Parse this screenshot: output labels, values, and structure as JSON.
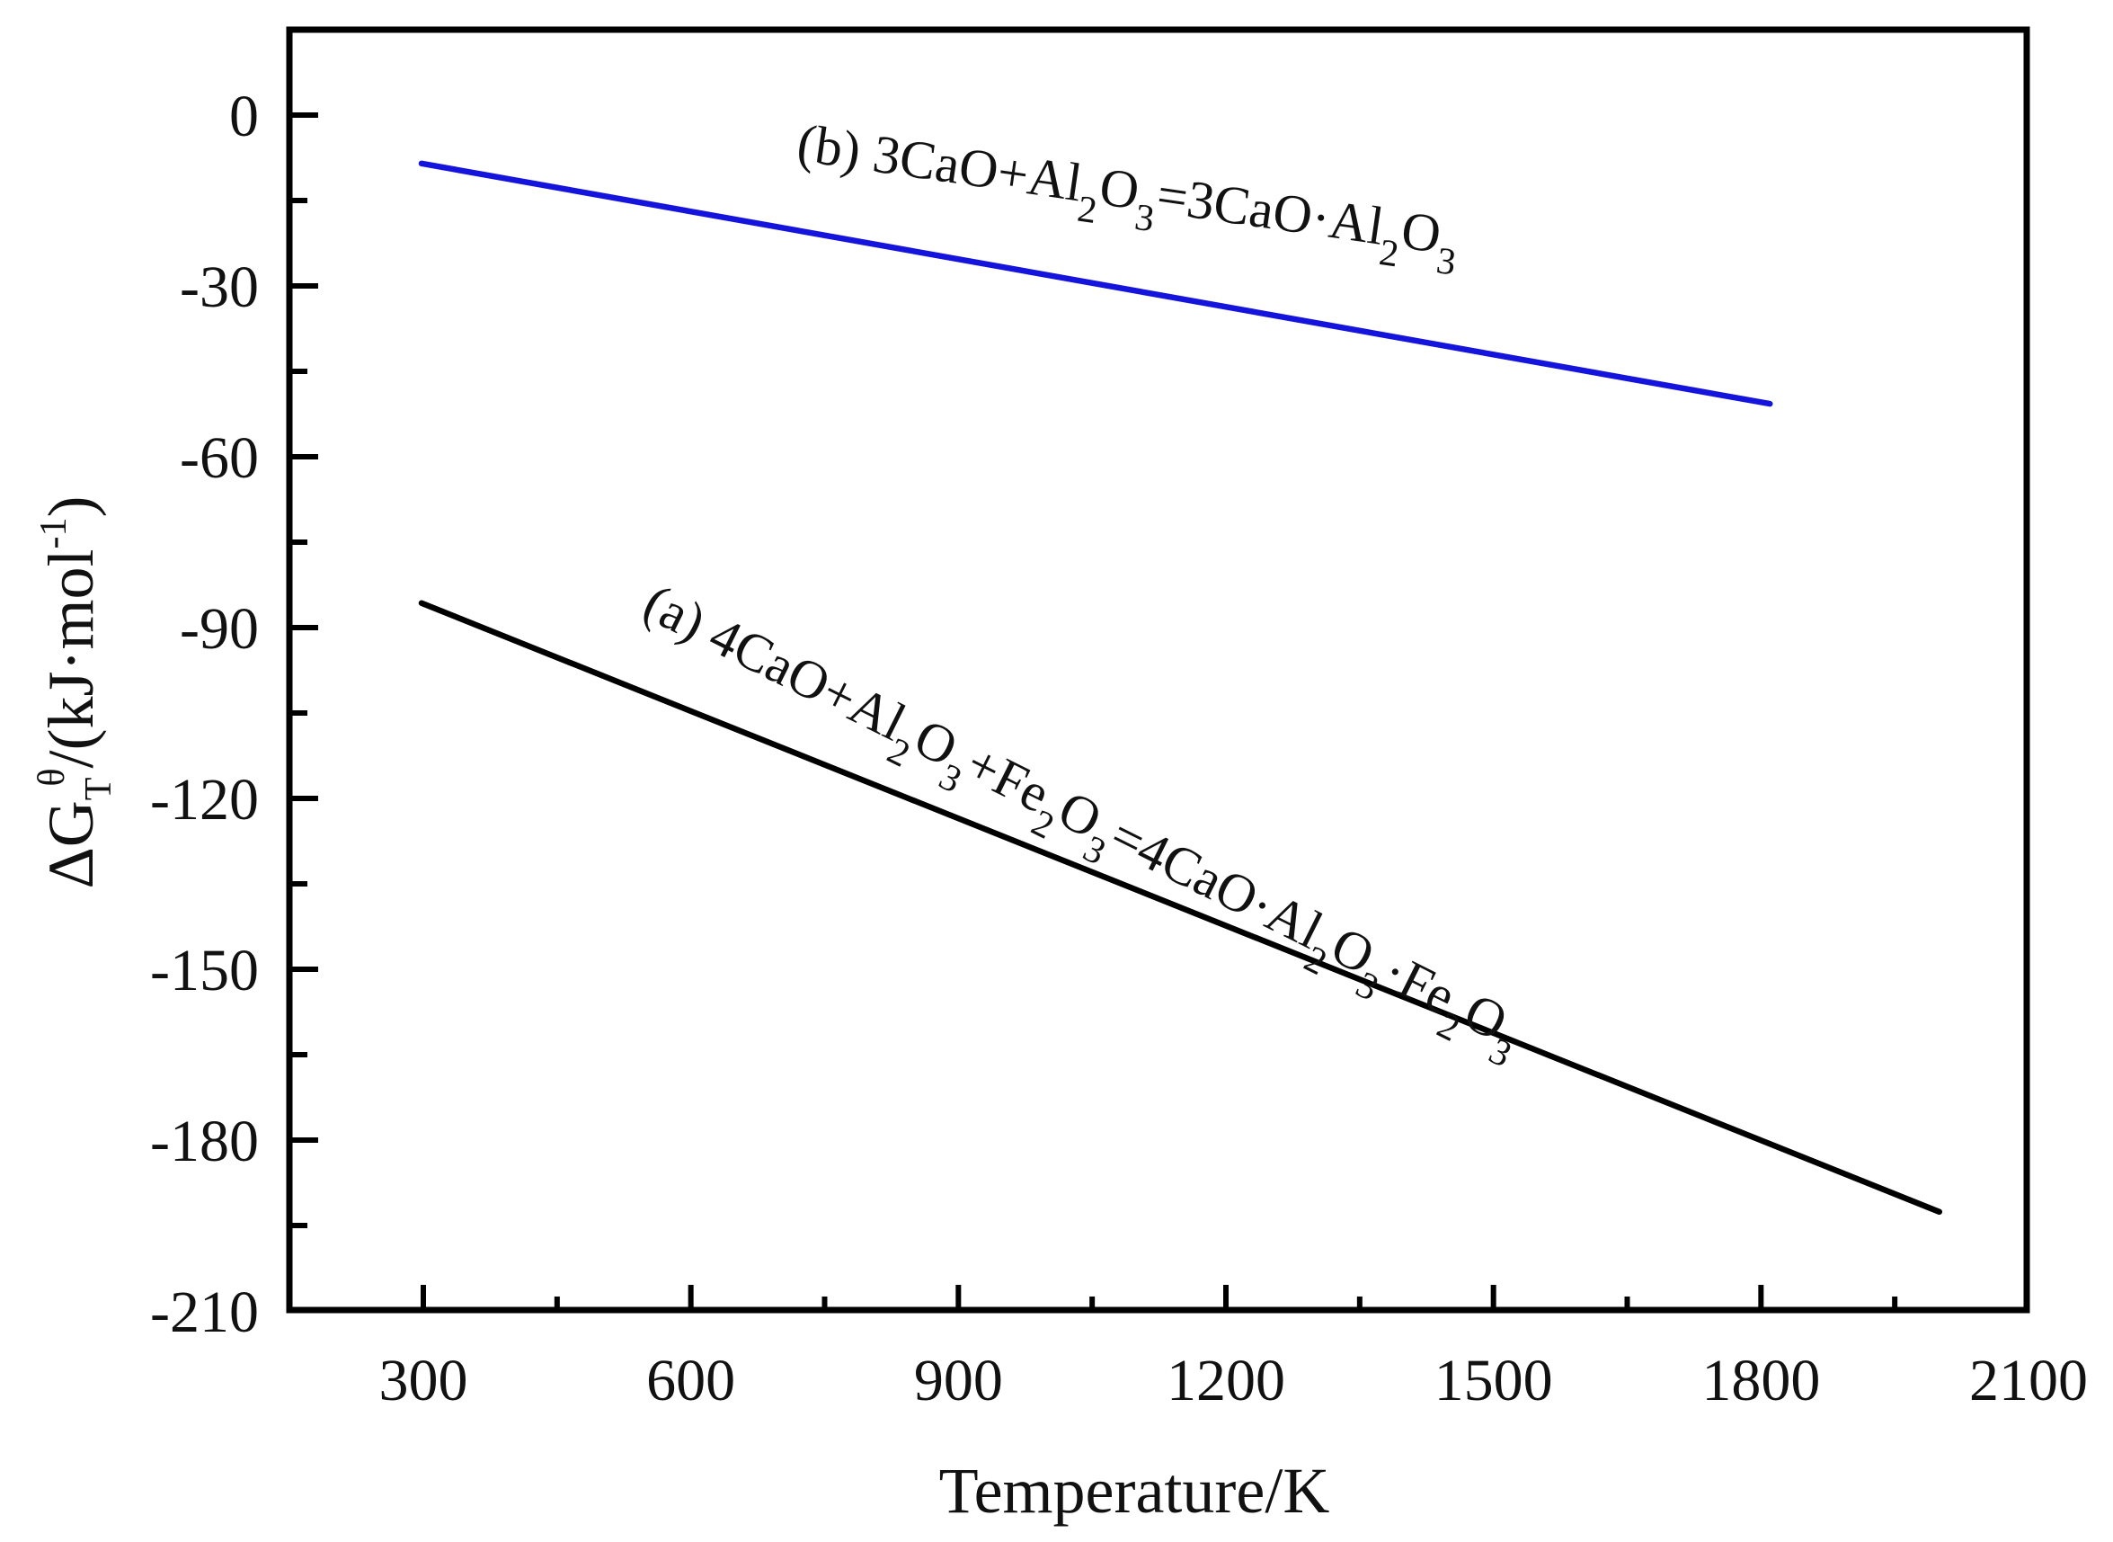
{
  "chart_data": {
    "type": "line",
    "title": "",
    "xlabel": "Temperature/K",
    "ylabel": "ΔG_T^θ/(kJ·mol⁻¹)",
    "ylabel_parts": {
      "delta_g": "ΔG",
      "sub": "T",
      "sup": "θ",
      "units": "/(kJ·mol",
      "units_sup": "-1",
      "close": ")"
    },
    "xlim": [
      200,
      2100
    ],
    "ylim": [
      -210,
      15
    ],
    "xticks": [
      300,
      600,
      900,
      1200,
      1500,
      1800,
      2100
    ],
    "xtick_labels": [
      "300",
      "600",
      "900",
      "1200",
      "1500",
      "1800",
      "2100"
    ],
    "yticks": [
      0,
      -30,
      -60,
      -90,
      -120,
      -150,
      -180,
      -210
    ],
    "ytick_labels": [
      "0",
      "-30",
      "-60",
      "-90",
      "-120",
      "-150",
      "-180",
      "-210"
    ],
    "minor_ticks": true,
    "grid": false,
    "legend": "inline annotations",
    "series": [
      {
        "name": "(b) 3CaO+Al2O3=3CaO·Al2O3",
        "color": "#1414dc",
        "x": [
          298,
          1810
        ],
        "values": [
          -8.5,
          -50.7
        ]
      },
      {
        "name": "(a) 4CaO+Al2O3+Fe2O3=4CaO·Al2O3·Fe2O3",
        "color": "#000000",
        "x": [
          298,
          2000
        ],
        "values": [
          -85.7,
          -192.6
        ]
      }
    ],
    "annotations": [
      {
        "id": "b",
        "parts": [
          {
            "t": "(b) 3CaO+Al"
          },
          {
            "t": "2",
            "sub": true
          },
          {
            "t": "O"
          },
          {
            "t": "3",
            "sub": true
          },
          {
            "t": "=3CaO·Al"
          },
          {
            "t": "2",
            "sub": true
          },
          {
            "t": "O"
          },
          {
            "t": "3",
            "sub": true
          }
        ]
      },
      {
        "id": "a",
        "parts": [
          {
            "t": "(a) 4CaO+Al"
          },
          {
            "t": "2",
            "sub": true
          },
          {
            "t": "O"
          },
          {
            "t": "3",
            "sub": true
          },
          {
            "t": "+Fe"
          },
          {
            "t": "2",
            "sub": true
          },
          {
            "t": "O"
          },
          {
            "t": "3",
            "sub": true
          },
          {
            "t": "=4CaO·Al"
          },
          {
            "t": "2",
            "sub": true
          },
          {
            "t": "O"
          },
          {
            "t": "3",
            "sub": true
          },
          {
            "t": "·Fe"
          },
          {
            "t": "2",
            "sub": true
          },
          {
            "t": "O"
          },
          {
            "t": "3",
            "sub": true
          }
        ]
      }
    ]
  }
}
